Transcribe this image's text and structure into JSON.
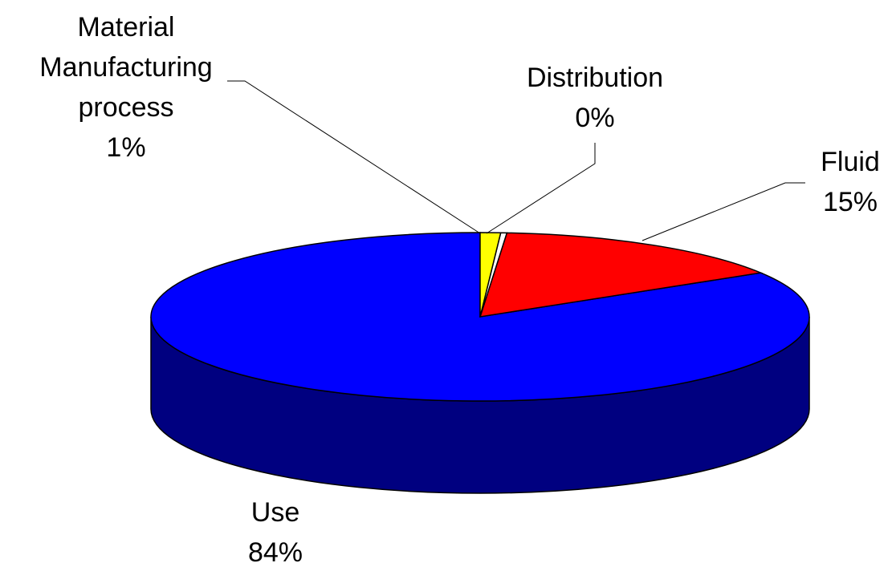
{
  "chart_data": {
    "type": "pie",
    "style": "3d",
    "title": "",
    "slices": [
      {
        "label_lines": [
          "Material",
          "Manufacturing",
          "process"
        ],
        "percent_label": "1%",
        "value": 1,
        "color": "#FFFF00"
      },
      {
        "label_lines": [
          "Distribution"
        ],
        "percent_label": "0%",
        "value": 0.3,
        "color": "#FFFFFF"
      },
      {
        "label_lines": [
          "Fluid"
        ],
        "percent_label": "15%",
        "value": 15,
        "color": "#FF0000"
      },
      {
        "label_lines": [
          "Use"
        ],
        "percent_label": "84%",
        "value": 84,
        "color": "#0000FF"
      }
    ],
    "side_color": "#000080",
    "legend": "none"
  }
}
